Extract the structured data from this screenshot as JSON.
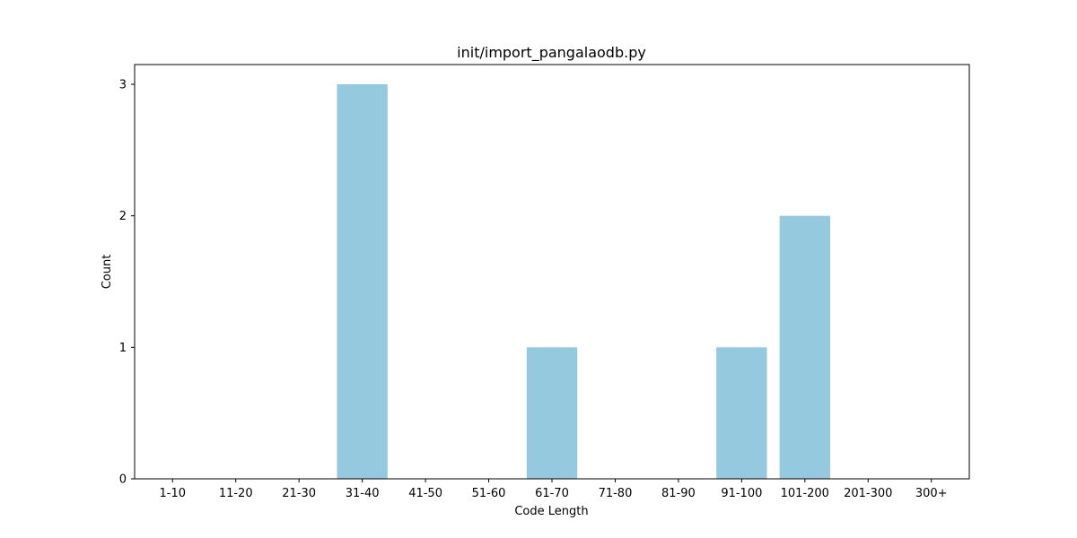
{
  "chart_data": {
    "type": "bar",
    "title": "init/import_pangalaodb.py",
    "xlabel": "Code Length",
    "ylabel": "Count",
    "categories": [
      "1-10",
      "11-20",
      "21-30",
      "31-40",
      "41-50",
      "51-60",
      "61-70",
      "71-80",
      "81-90",
      "91-100",
      "101-200",
      "201-300",
      "300+"
    ],
    "values": [
      0,
      0,
      0,
      3,
      0,
      0,
      1,
      0,
      0,
      1,
      2,
      0,
      0
    ],
    "ylim": [
      0,
      3.15
    ],
    "yticks": [
      0,
      1,
      2,
      3
    ],
    "bar_color": "#95c9de",
    "grid": false,
    "legend": "none"
  }
}
